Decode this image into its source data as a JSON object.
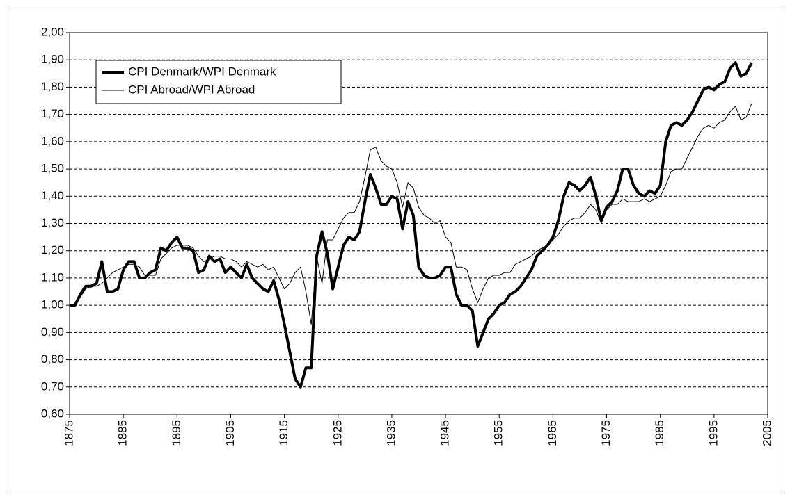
{
  "chart_data": {
    "type": "line",
    "x": [
      1875,
      1876,
      1877,
      1878,
      1879,
      1880,
      1881,
      1882,
      1883,
      1884,
      1885,
      1886,
      1887,
      1888,
      1889,
      1890,
      1891,
      1892,
      1893,
      1894,
      1895,
      1896,
      1897,
      1898,
      1899,
      1900,
      1901,
      1902,
      1903,
      1904,
      1905,
      1906,
      1907,
      1908,
      1909,
      1910,
      1911,
      1912,
      1913,
      1914,
      1915,
      1916,
      1917,
      1918,
      1919,
      1920,
      1921,
      1922,
      1923,
      1924,
      1925,
      1926,
      1927,
      1928,
      1929,
      1930,
      1931,
      1932,
      1933,
      1934,
      1935,
      1936,
      1937,
      1938,
      1939,
      1940,
      1941,
      1942,
      1943,
      1944,
      1945,
      1946,
      1947,
      1948,
      1949,
      1950,
      1951,
      1952,
      1953,
      1954,
      1955,
      1956,
      1957,
      1958,
      1959,
      1960,
      1961,
      1962,
      1963,
      1964,
      1965,
      1966,
      1967,
      1968,
      1969,
      1970,
      1971,
      1972,
      1973,
      1974,
      1975,
      1976,
      1977,
      1978,
      1979,
      1980,
      1981,
      1982,
      1983,
      1984,
      1985,
      1986,
      1987,
      1988,
      1989,
      1990,
      1991,
      1992,
      1993,
      1994,
      1995,
      1996,
      1997,
      1998,
      1999,
      2000,
      2001,
      2002
    ],
    "series": [
      {
        "name": "CPI Denmark/WPI Denmark",
        "color": "#000000",
        "linewidth": 4,
        "values": [
          1.0,
          1.0,
          1.04,
          1.07,
          1.07,
          1.08,
          1.16,
          1.05,
          1.05,
          1.06,
          1.13,
          1.16,
          1.16,
          1.1,
          1.1,
          1.12,
          1.13,
          1.21,
          1.2,
          1.23,
          1.25,
          1.21,
          1.21,
          1.2,
          1.12,
          1.13,
          1.18,
          1.16,
          1.17,
          1.12,
          1.14,
          1.12,
          1.1,
          1.15,
          1.1,
          1.08,
          1.06,
          1.05,
          1.09,
          1.02,
          0.93,
          0.83,
          0.73,
          0.7,
          0.77,
          0.77,
          1.18,
          1.27,
          1.19,
          1.06,
          1.14,
          1.22,
          1.25,
          1.24,
          1.27,
          1.38,
          1.48,
          1.43,
          1.37,
          1.37,
          1.4,
          1.39,
          1.28,
          1.38,
          1.33,
          1.14,
          1.11,
          1.1,
          1.1,
          1.11,
          1.14,
          1.14,
          1.04,
          1.0,
          1.0,
          0.98,
          0.85,
          0.9,
          0.95,
          0.97,
          1.0,
          1.01,
          1.04,
          1.05,
          1.07,
          1.1,
          1.13,
          1.18,
          1.2,
          1.22,
          1.25,
          1.31,
          1.4,
          1.45,
          1.44,
          1.42,
          1.44,
          1.47,
          1.4,
          1.31,
          1.36,
          1.38,
          1.42,
          1.5,
          1.5,
          1.44,
          1.41,
          1.4,
          1.42,
          1.41,
          1.44,
          1.6,
          1.66,
          1.67,
          1.66,
          1.68,
          1.71,
          1.75,
          1.79,
          1.8,
          1.79,
          1.81,
          1.82,
          1.87,
          1.89,
          1.84,
          1.85,
          1.89
        ]
      },
      {
        "name": "CPI Abroad/WPI Abroad",
        "color": "#000000",
        "linewidth": 1,
        "values": [
          1.0,
          1.0,
          1.03,
          1.06,
          1.07,
          1.07,
          1.08,
          1.1,
          1.12,
          1.13,
          1.14,
          1.15,
          1.15,
          1.14,
          1.11,
          1.11,
          1.11,
          1.17,
          1.19,
          1.21,
          1.22,
          1.22,
          1.22,
          1.21,
          1.18,
          1.16,
          1.17,
          1.18,
          1.18,
          1.17,
          1.17,
          1.16,
          1.14,
          1.16,
          1.15,
          1.14,
          1.15,
          1.13,
          1.14,
          1.1,
          1.06,
          1.08,
          1.12,
          1.14,
          1.05,
          0.93,
          1.18,
          1.08,
          1.24,
          1.24,
          1.28,
          1.32,
          1.34,
          1.34,
          1.38,
          1.47,
          1.57,
          1.58,
          1.53,
          1.51,
          1.5,
          1.45,
          1.36,
          1.45,
          1.43,
          1.36,
          1.33,
          1.32,
          1.3,
          1.31,
          1.25,
          1.23,
          1.14,
          1.14,
          1.13,
          1.06,
          1.01,
          1.06,
          1.1,
          1.11,
          1.11,
          1.12,
          1.12,
          1.15,
          1.16,
          1.17,
          1.18,
          1.2,
          1.21,
          1.22,
          1.24,
          1.26,
          1.29,
          1.31,
          1.32,
          1.32,
          1.34,
          1.37,
          1.35,
          1.3,
          1.35,
          1.37,
          1.37,
          1.39,
          1.38,
          1.38,
          1.38,
          1.39,
          1.38,
          1.39,
          1.4,
          1.44,
          1.49,
          1.5,
          1.5,
          1.54,
          1.58,
          1.62,
          1.65,
          1.66,
          1.65,
          1.67,
          1.68,
          1.71,
          1.73,
          1.68,
          1.69,
          1.74
        ]
      }
    ],
    "xlim": [
      1875,
      2005
    ],
    "xticks": [
      1875,
      1885,
      1895,
      1905,
      1915,
      1925,
      1935,
      1945,
      1955,
      1965,
      1975,
      1985,
      1995,
      2005
    ],
    "ylim": [
      0.6,
      2.0
    ],
    "yticks": [
      {
        "value": 0.6,
        "label": "0,60"
      },
      {
        "value": 0.7,
        "label": "0,70"
      },
      {
        "value": 0.8,
        "label": "0,80"
      },
      {
        "value": 0.9,
        "label": "0,90"
      },
      {
        "value": 1.0,
        "label": "1,00"
      },
      {
        "value": 1.1,
        "label": "1,10"
      },
      {
        "value": 1.2,
        "label": "1,20"
      },
      {
        "value": 1.3,
        "label": "1,30"
      },
      {
        "value": 1.4,
        "label": "1,40"
      },
      {
        "value": 1.5,
        "label": "1,50"
      },
      {
        "value": 1.6,
        "label": "1,60"
      },
      {
        "value": 1.7,
        "label": "1,70"
      },
      {
        "value": 1.8,
        "label": "1,80"
      },
      {
        "value": 1.9,
        "label": "1,90"
      },
      {
        "value": 2.0,
        "label": "2,00"
      }
    ],
    "grid": true,
    "legend": "upper left"
  }
}
